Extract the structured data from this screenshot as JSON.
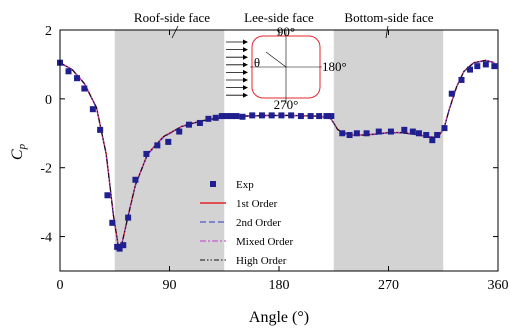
{
  "chart_data": {
    "type": "line",
    "xlabel": "Angle (°)",
    "ylabel": "C",
    "ylabel_sub": "p",
    "xlim": [
      0,
      360
    ],
    "ylim": [
      -5,
      2
    ],
    "xticks": [
      0,
      90,
      180,
      270,
      360
    ],
    "yticks": [
      2,
      0,
      -2,
      -4
    ],
    "grid": false,
    "legend_position": "lower-center",
    "shaded_regions": [
      {
        "label": "Roof-side face",
        "x0": 45,
        "x1": 135
      },
      {
        "label": "Bottom-side face",
        "x0": 225,
        "x1": 315
      }
    ],
    "center_label": "Lee-side face",
    "inset": {
      "labels": {
        "top": "90°",
        "right": "180°",
        "bottom": "270°",
        "angle": "θ"
      }
    },
    "scatter": {
      "name": "Exp",
      "color": "#1f1f8f",
      "x": [
        0,
        7,
        14,
        20,
        27,
        33,
        39,
        43,
        47,
        49,
        52,
        56,
        62,
        71,
        80,
        89,
        98,
        106,
        115,
        122,
        128,
        133,
        137,
        141,
        145,
        150,
        158,
        166,
        174,
        182,
        190,
        198,
        206,
        213,
        219,
        223,
        232,
        238,
        244,
        252,
        262,
        272,
        283,
        290,
        295,
        301,
        306,
        310,
        316,
        322,
        330,
        337,
        343,
        350,
        357
      ],
      "y": [
        1.05,
        0.8,
        0.6,
        0.3,
        -0.3,
        -0.9,
        -2.8,
        -3.6,
        -4.3,
        -4.35,
        -4.25,
        -3.45,
        -2.35,
        -1.6,
        -1.35,
        -1.25,
        -0.95,
        -0.75,
        -0.7,
        -0.58,
        -0.55,
        -0.5,
        -0.5,
        -0.5,
        -0.5,
        -0.52,
        -0.48,
        -0.48,
        -0.48,
        -0.48,
        -0.48,
        -0.5,
        -0.5,
        -0.5,
        -0.5,
        -0.5,
        -1.0,
        -1.05,
        -1.0,
        -1.0,
        -0.95,
        -0.95,
        -0.9,
        -0.95,
        -1.0,
        -1.05,
        -1.2,
        -1.05,
        -0.85,
        0.15,
        0.55,
        0.85,
        0.95,
        1.0,
        0.95
      ]
    },
    "series": [
      {
        "name": "1st Order",
        "color": "#e8252a",
        "dash": "",
        "x": [
          0,
          10,
          20,
          30,
          38,
          44,
          48,
          51,
          56,
          62,
          72,
          85,
          100,
          115,
          130,
          150,
          170,
          190,
          210,
          222,
          225,
          228,
          232,
          240,
          250,
          260,
          270,
          280,
          290,
          300,
          308,
          312,
          316,
          320,
          326,
          332,
          340,
          350,
          357
        ],
        "y": [
          1.05,
          0.85,
          0.45,
          -0.25,
          -1.6,
          -3.4,
          -4.3,
          -4.2,
          -3.4,
          -2.5,
          -1.6,
          -1.1,
          -0.8,
          -0.65,
          -0.55,
          -0.5,
          -0.48,
          -0.48,
          -0.5,
          -0.55,
          -0.7,
          -0.88,
          -0.98,
          -1.05,
          -1.05,
          -1.02,
          -0.98,
          -0.98,
          -1.02,
          -1.08,
          -1.12,
          -1.05,
          -0.8,
          -0.3,
          0.35,
          0.8,
          1.05,
          1.12,
          1.05
        ]
      },
      {
        "name": "2nd Order",
        "color": "#2a3ad0",
        "dash": "6,3",
        "x": [
          0,
          10,
          20,
          30,
          38,
          44,
          48,
          51,
          56,
          62,
          72,
          85,
          100,
          115,
          130,
          150,
          170,
          190,
          210,
          222,
          225,
          228,
          232,
          240,
          250,
          260,
          270,
          280,
          290,
          300,
          308,
          312,
          316,
          320,
          326,
          332,
          340,
          350,
          357
        ],
        "y": [
          1.04,
          0.84,
          0.44,
          -0.27,
          -1.62,
          -3.42,
          -4.28,
          -4.18,
          -3.42,
          -2.52,
          -1.62,
          -1.12,
          -0.81,
          -0.66,
          -0.56,
          -0.51,
          -0.49,
          -0.49,
          -0.51,
          -0.56,
          -0.71,
          -0.89,
          -0.99,
          -1.06,
          -1.06,
          -1.03,
          -0.99,
          -0.99,
          -1.03,
          -1.09,
          -1.13,
          -1.06,
          -0.81,
          -0.31,
          0.34,
          0.79,
          1.04,
          1.11,
          1.04
        ]
      },
      {
        "name": "Mixed Order",
        "color": "#c23ac8",
        "dash": "6,2,2,2",
        "x": [
          0,
          10,
          20,
          30,
          38,
          44,
          48,
          51,
          56,
          62,
          72,
          85,
          100,
          115,
          130,
          150,
          170,
          190,
          210,
          222,
          225,
          228,
          232,
          240,
          250,
          260,
          270,
          280,
          290,
          300,
          308,
          312,
          316,
          320,
          326,
          332,
          340,
          350,
          357
        ],
        "y": [
          1.05,
          0.85,
          0.45,
          -0.26,
          -1.61,
          -3.41,
          -4.29,
          -4.19,
          -3.41,
          -2.51,
          -1.61,
          -1.11,
          -0.8,
          -0.65,
          -0.55,
          -0.5,
          -0.48,
          -0.48,
          -0.5,
          -0.55,
          -0.7,
          -0.88,
          -0.98,
          -1.05,
          -1.05,
          -1.02,
          -0.98,
          -0.98,
          -1.02,
          -1.08,
          -1.12,
          -1.05,
          -0.8,
          -0.3,
          0.35,
          0.8,
          1.05,
          1.12,
          1.05
        ]
      },
      {
        "name": "High Order",
        "color": "#111111",
        "dash": "5,2,1.5,2,1.5,2",
        "x": [
          0,
          10,
          20,
          30,
          38,
          44,
          48,
          51,
          56,
          62,
          72,
          85,
          100,
          115,
          130,
          150,
          170,
          190,
          210,
          222,
          225,
          228,
          232,
          240,
          250,
          260,
          270,
          280,
          290,
          300,
          308,
          312,
          316,
          320,
          326,
          332,
          340,
          350,
          357
        ],
        "y": [
          1.05,
          0.85,
          0.45,
          -0.25,
          -1.6,
          -3.4,
          -4.3,
          -4.2,
          -3.4,
          -2.5,
          -1.6,
          -1.1,
          -0.8,
          -0.65,
          -0.55,
          -0.5,
          -0.48,
          -0.48,
          -0.5,
          -0.55,
          -0.7,
          -0.88,
          -0.98,
          -1.05,
          -1.05,
          -1.02,
          -0.98,
          -0.98,
          -1.02,
          -1.08,
          -1.12,
          -1.05,
          -0.8,
          -0.3,
          0.35,
          0.8,
          1.05,
          1.12,
          1.05
        ]
      }
    ]
  }
}
